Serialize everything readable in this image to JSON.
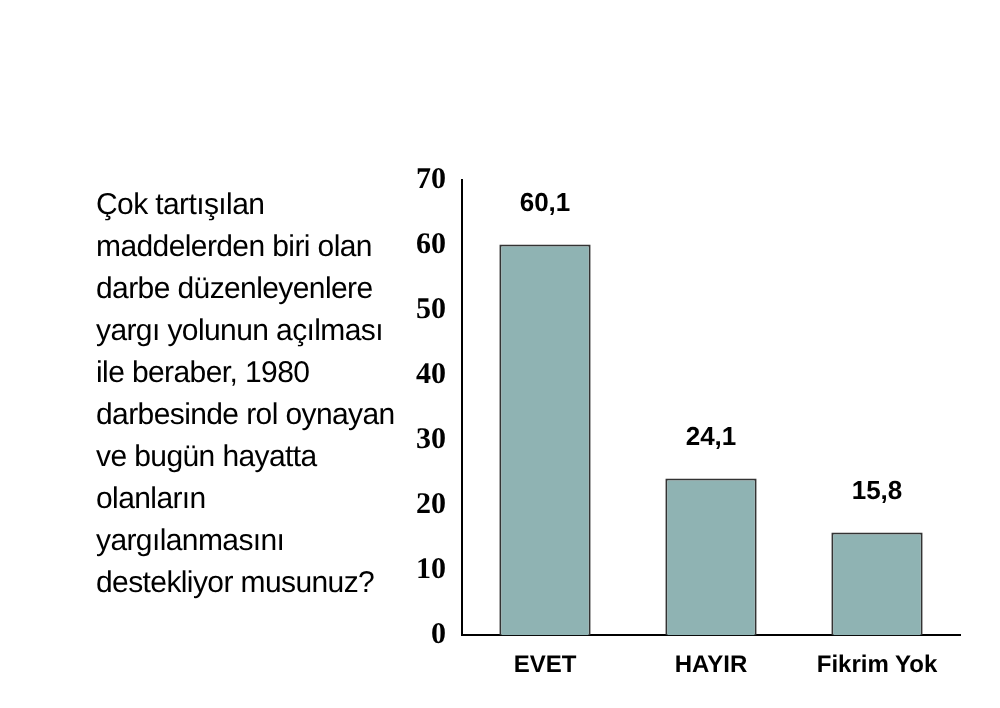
{
  "chart_data": {
    "type": "bar",
    "title": "Çok tartışılan maddelerden biri olan darbe düzenleyenlere yargı yolunun açılması ile beraber, 1980 darbesinde rol oynayan ve bugün hayatta olanların yargılanmasını destekliyor musunuz?",
    "categories": [
      "EVET",
      "HAYIR",
      "Fikrim Yok"
    ],
    "values": [
      60.1,
      24.1,
      15.8
    ],
    "value_labels": [
      "60,1",
      "24,1",
      "15,8"
    ],
    "color": "#8fb3b3",
    "ylim": [
      0,
      70
    ],
    "yticks": [
      0,
      10,
      20,
      30,
      40,
      50,
      60,
      70
    ],
    "grid": false,
    "legend": false
  }
}
